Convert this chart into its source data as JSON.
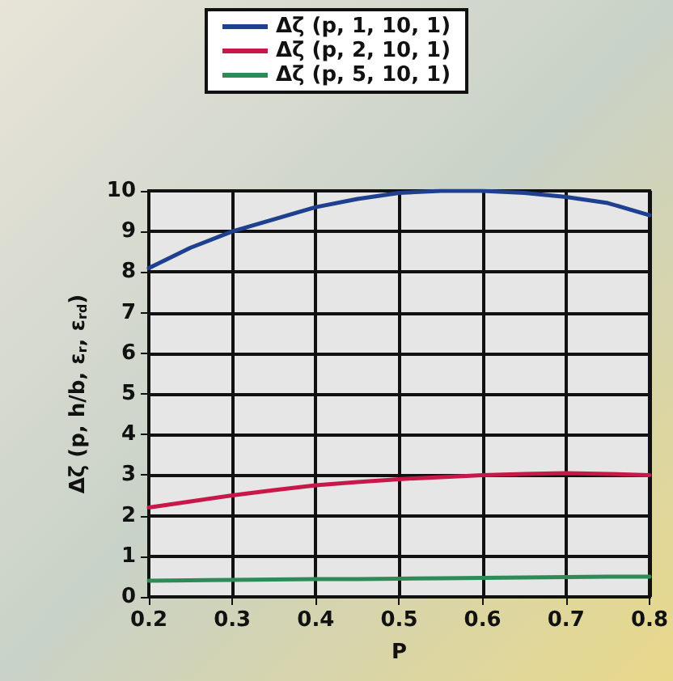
{
  "chart_data": {
    "type": "line",
    "xlabel": "P",
    "ylabel": "Δζ (p, h/b, ε$_{r}$, ε$_{rd}$)",
    "x": [
      0.2,
      0.25,
      0.3,
      0.35,
      0.4,
      0.45,
      0.5,
      0.55,
      0.6,
      0.65,
      0.7,
      0.75,
      0.8
    ],
    "series": [
      {
        "name": "Δζ (p, 1, 10, 1)",
        "color": "#1f3f8f",
        "values": [
          8.1,
          8.6,
          9.0,
          9.3,
          9.6,
          9.8,
          9.95,
          10.0,
          10.0,
          9.95,
          9.85,
          9.7,
          9.4
        ]
      },
      {
        "name": "Δζ (p, 2, 10, 1)",
        "color": "#c8184a",
        "values": [
          2.2,
          2.35,
          2.5,
          2.63,
          2.75,
          2.83,
          2.9,
          2.95,
          3.0,
          3.03,
          3.05,
          3.03,
          3.0
        ]
      },
      {
        "name": "Δζ (p, 5, 10, 1)",
        "color": "#2e8b57",
        "values": [
          0.4,
          0.41,
          0.42,
          0.43,
          0.44,
          0.44,
          0.45,
          0.46,
          0.47,
          0.48,
          0.49,
          0.5,
          0.5
        ]
      }
    ],
    "xlim": [
      0.2,
      0.8
    ],
    "xticks": [
      0.2,
      0.3,
      0.4,
      0.5,
      0.6,
      0.7,
      0.8
    ],
    "ylim": [
      0,
      10
    ],
    "yticks": [
      0,
      1,
      2,
      3,
      4,
      5,
      6,
      7,
      8,
      9,
      10
    ],
    "grid": true,
    "legend": "top",
    "marker": "none",
    "line_style": "solid"
  }
}
